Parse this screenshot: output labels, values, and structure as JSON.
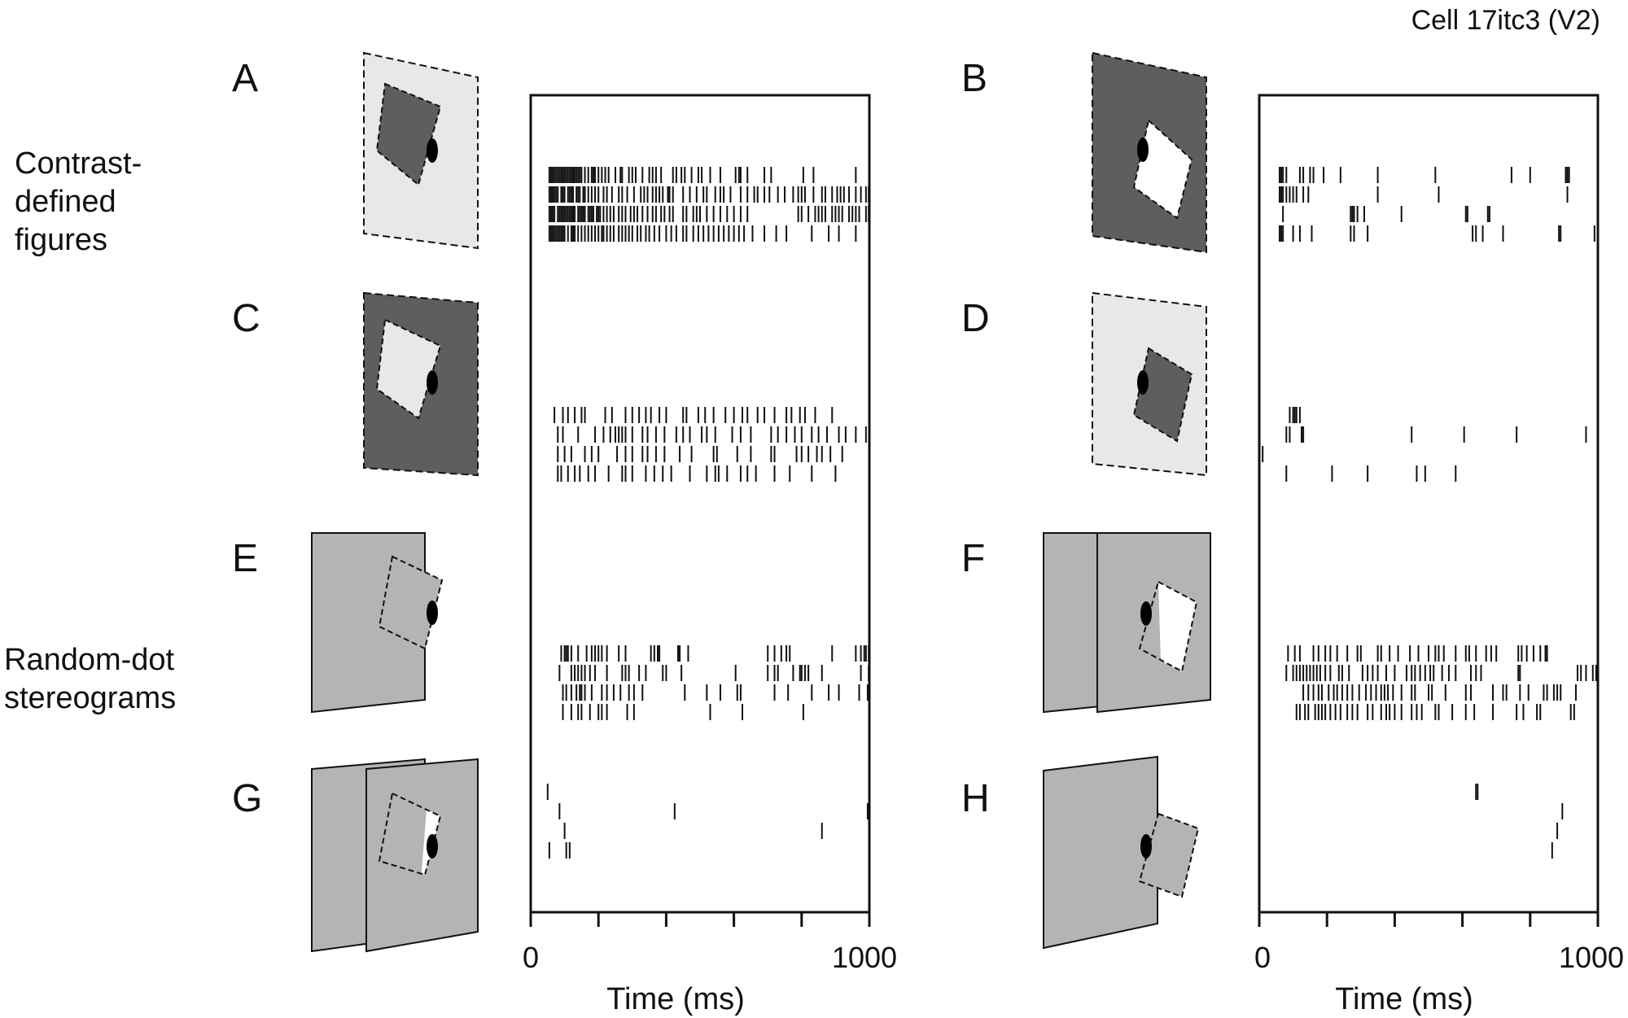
{
  "cell_title": "Cell 17itc3 (V2)",
  "group_labels": [
    {
      "lines": [
        "Contrast-",
        "defined",
        "figures"
      ]
    },
    {
      "lines": [
        "Random-dot",
        "stereograms"
      ]
    }
  ],
  "panel_letters": [
    "A",
    "B",
    "C",
    "D",
    "E",
    "F",
    "G",
    "H"
  ],
  "colors": {
    "light_bg": "#e8e8e8",
    "dark_bg": "#5e5e5e",
    "stereo_gray": "#b4b4b4",
    "white": "#ffffff",
    "ink": "#111111"
  },
  "chart_data": [
    {
      "type": "raster",
      "xlabel": "Time (ms)",
      "xlim": [
        0,
        1000
      ],
      "x_ticks": [
        0,
        200,
        400,
        600,
        800,
        1000
      ],
      "x_tick_labels": [
        "0",
        "1000"
      ],
      "panels": [
        {
          "label": "A",
          "trials": [
            [
              55,
              60,
              65,
              70,
              75,
              80,
              85,
              90,
              95,
              100,
              105,
              110,
              115,
              120,
              125,
              130,
              135,
              140,
              145,
              150,
              160,
              170,
              180,
              185,
              190,
              200,
              210,
              220,
              230,
              250,
              265,
              270,
              290,
              300,
              310,
              330,
              350,
              360,
              370,
              385,
              420,
              430,
              445,
              455,
              475,
              495,
              505,
              530,
              560,
              605,
              615,
              620,
              640,
              690,
              710,
              805,
              835,
              960
            ],
            [
              55,
              60,
              65,
              70,
              75,
              80,
              90,
              95,
              100,
              110,
              115,
              120,
              125,
              135,
              140,
              145,
              155,
              160,
              170,
              180,
              190,
              200,
              215,
              225,
              240,
              260,
              270,
              285,
              305,
              325,
              335,
              345,
              360,
              370,
              380,
              390,
              405,
              410,
              420,
              450,
              470,
              490,
              510,
              520,
              545,
              560,
              570,
              590,
              620,
              640,
              660,
              670,
              690,
              705,
              730,
              750,
              775,
              790,
              800,
              810,
              835,
              860,
              870,
              890,
              905,
              915,
              925,
              940,
              960,
              975,
              990,
              998
            ],
            [
              55,
              60,
              65,
              70,
              80,
              85,
              90,
              95,
              100,
              105,
              110,
              115,
              120,
              125,
              130,
              140,
              145,
              150,
              155,
              160,
              170,
              175,
              180,
              185,
              195,
              200,
              205,
              215,
              225,
              235,
              245,
              260,
              270,
              280,
              295,
              305,
              315,
              330,
              345,
              360,
              370,
              385,
              395,
              410,
              420,
              450,
              460,
              480,
              490,
              500,
              520,
              540,
              560,
              580,
              600,
              620,
              640,
              790,
              800,
              820,
              840,
              850,
              860,
              870,
              890,
              900,
              910,
              920,
              940,
              950,
              960,
              970,
              990,
              998
            ],
            [
              55,
              60,
              65,
              70,
              75,
              80,
              85,
              90,
              95,
              100,
              110,
              120,
              125,
              130,
              140,
              150,
              160,
              170,
              180,
              190,
              200,
              210,
              215,
              225,
              235,
              245,
              260,
              270,
              280,
              290,
              300,
              315,
              325,
              340,
              350,
              365,
              380,
              400,
              415,
              430,
              450,
              460,
              480,
              495,
              510,
              525,
              540,
              555,
              570,
              585,
              600,
              615,
              630,
              655,
              690,
              725,
              755,
              830,
              880,
              910,
              960
            ]
          ]
        },
        {
          "label": "B",
          "trials": [
            [
              60,
              65,
              70,
              80,
              120,
              130,
              150,
              160,
              190,
              240,
              350,
              520,
              745,
              800,
              905,
              910,
              915
            ],
            [
              60,
              65,
              70,
              80,
              90,
              100,
              110,
              130,
              145,
              350,
              530,
              910
            ],
            [
              70,
              270,
              275,
              280,
              290,
              310,
              420,
              610,
              615,
              675,
              680
            ],
            [
              60,
              65,
              70,
              100,
              120,
              155,
              270,
              280,
              320,
              630,
              640,
              660,
              720,
              885,
              890,
              990
            ]
          ]
        },
        {
          "label": "C",
          "trials": [
            [
              70,
              95,
              110,
              130,
              150,
              160,
              220,
              240,
              280,
              300,
              320,
              340,
              355,
              380,
              400,
              450,
              460,
              495,
              515,
              540,
              575,
              600,
              625,
              640,
              670,
              690,
              720,
              755,
              770,
              795,
              810,
              840,
              890
            ],
            [
              80,
              95,
              140,
              190,
              215,
              235,
              250,
              260,
              270,
              280,
              300,
              330,
              345,
              370,
              395,
              430,
              450,
              470,
              505,
              520,
              545,
              595,
              620,
              650,
              710,
              730,
              755,
              780,
              800,
              830,
              850,
              875,
              910,
              930,
              960,
              990
            ],
            [
              80,
              100,
              120,
              160,
              180,
              200,
              255,
              280,
              300,
              330,
              345,
              370,
              395,
              440,
              475,
              540,
              550,
              610,
              650,
              710,
              720,
              785,
              800,
              820,
              845,
              860,
              885,
              920
            ],
            [
              80,
              90,
              110,
              130,
              145,
              170,
              190,
              230,
              270,
              280,
              300,
              340,
              365,
              390,
              415,
              470,
              520,
              545,
              555,
              580,
              620,
              640,
              665,
              720,
              765,
              830,
              900
            ]
          ]
        },
        {
          "label": "D",
          "trials": [
            [
              90,
              100,
              105,
              110,
              120
            ],
            [
              80,
              90,
              125,
              130,
              450,
              605,
              760,
              965
            ],
            [
              10
            ],
            [
              80,
              215,
              320,
              465,
              490,
              580
            ]
          ]
        },
        {
          "label": "E",
          "trials": [
            [
              90,
              100,
              105,
              110,
              120,
              140,
              165,
              180,
              190,
              200,
              210,
              225,
              260,
              280,
              355,
              365,
              375,
              380,
              435,
              440,
              465,
              700,
              720,
              740,
              755,
              765,
              890,
              960,
              975,
              985,
              990,
              998
            ],
            [
              85,
              120,
              130,
              140,
              150,
              160,
              175,
              190,
              225,
              270,
              280,
              290,
              320,
              340,
              390,
              400,
              445,
              605,
              700,
              720,
              730,
              775,
              795,
              800,
              810,
              820,
              860,
              975,
              998
            ],
            [
              95,
              105,
              120,
              135,
              145,
              150,
              160,
              180,
              210,
              225,
              245,
              265,
              290,
              305,
              330,
              455,
              520,
              560,
              610,
              620,
              720,
              760,
              830,
              880,
              910,
              970,
              995
            ],
            [
              95,
              120,
              140,
              150,
              175,
              200,
              210,
              225,
              285,
              305,
              530,
              625,
              805
            ]
          ]
        },
        {
          "label": "F",
          "trials": [
            [
              85,
              105,
              120,
              160,
              175,
              195,
              210,
              230,
              260,
              290,
              300,
              350,
              360,
              385,
              410,
              445,
              470,
              500,
              520,
              530,
              545,
              580,
              610,
              620,
              640,
              670,
              685,
              700,
              765,
              775,
              790,
              810,
              830,
              845,
              850
            ],
            [
              80,
              100,
              110,
              120,
              130,
              140,
              150,
              160,
              170,
              180,
              195,
              210,
              235,
              245,
              265,
              305,
              320,
              335,
              350,
              375,
              400,
              435,
              450,
              460,
              475,
              490,
              505,
              515,
              540,
              560,
              580,
              625,
              640,
              655,
              765,
              770,
              940,
              950,
              965,
              985,
              995
            ],
            [
              130,
              145,
              160,
              175,
              185,
              205,
              220,
              230,
              245,
              260,
              275,
              295,
              315,
              330,
              345,
              360,
              370,
              380,
              395,
              420,
              450,
              460,
              500,
              510,
              550,
              610,
              625,
              690,
              720,
              730,
              770,
              795,
              840,
              850,
              870,
              880,
              890,
              935
            ],
            [
              110,
              120,
              135,
              145,
              165,
              175,
              185,
              195,
              210,
              225,
              240,
              260,
              275,
              290,
              320,
              335,
              360,
              375,
              385,
              400,
              420,
              450,
              465,
              480,
              520,
              530,
              570,
              610,
              635,
              690,
              760,
              780,
              820,
              830,
              920,
              930
            ]
          ]
        },
        {
          "label": "G",
          "trials": [
            [
              50
            ],
            [
              85,
              425,
              995
            ],
            [
              100,
              860
            ],
            [
              55,
              105,
              115
            ]
          ]
        },
        {
          "label": "H",
          "trials": [
            [
              640,
              645
            ],
            [
              895
            ],
            [
              880
            ],
            [
              865
            ]
          ]
        }
      ]
    }
  ]
}
